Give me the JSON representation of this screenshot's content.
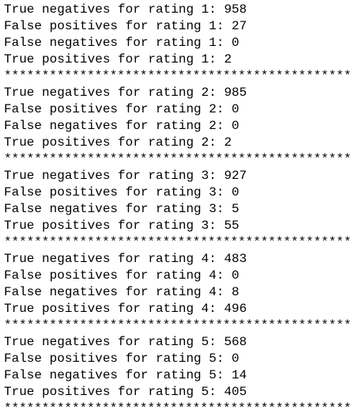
{
  "blocks": [
    {
      "lines": [
        "True negatives for rating 1: 958",
        "False positives for rating 1: 27",
        "False negatives for rating 1: 0",
        "True positives for rating 1: 2"
      ],
      "separator": "**********************************************"
    },
    {
      "lines": [
        "True negatives for rating 2: 985",
        "False positives for rating 2: 0",
        "False negatives for rating 2: 0",
        "True positives for rating 2: 2"
      ],
      "separator": "**********************************************"
    },
    {
      "lines": [
        "True negatives for rating 3: 927",
        "False positives for rating 3: 0",
        "False negatives for rating 3: 5",
        "True positives for rating 3: 55"
      ],
      "separator": "**********************************************"
    },
    {
      "lines": [
        "True negatives for rating 4: 483",
        "False positives for rating 4: 0",
        "False negatives for rating 4: 8",
        "True positives for rating 4: 496"
      ],
      "separator": "**********************************************"
    },
    {
      "lines": [
        "True negatives for rating 5: 568",
        "False positives for rating 5: 0",
        "False negatives for rating 5: 14",
        "True positives for rating 5: 405"
      ],
      "separator": "**********************************************"
    }
  ]
}
